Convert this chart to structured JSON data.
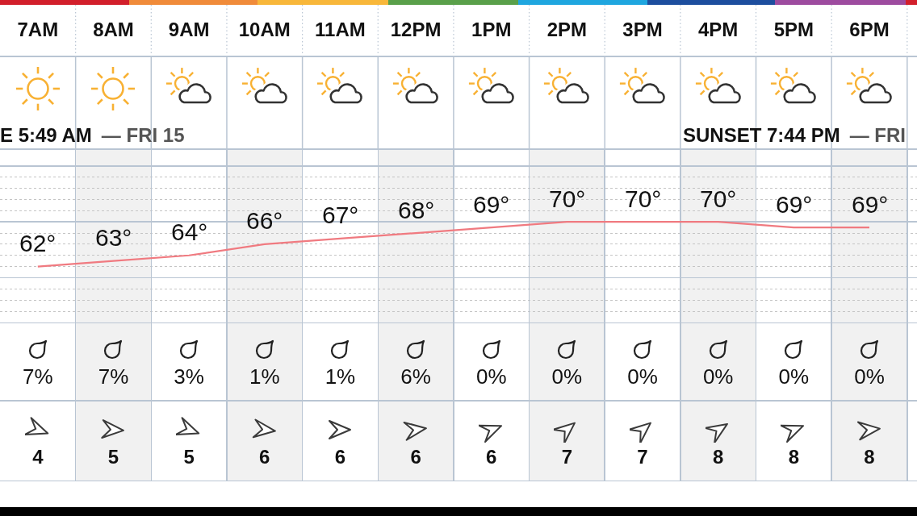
{
  "chart_data": [
    {
      "type": "line",
      "categories": [
        "7AM",
        "8AM",
        "9AM",
        "10AM",
        "11AM",
        "12PM",
        "1PM",
        "2PM",
        "3PM",
        "4PM",
        "5PM",
        "6PM"
      ],
      "values": [
        62,
        63,
        64,
        66,
        67,
        68,
        69,
        70,
        70,
        70,
        69,
        69
      ],
      "value_labels": [
        "62°",
        "63°",
        "64°",
        "66°",
        "67°",
        "68°",
        "69°",
        "70°",
        "70°",
        "70°",
        "69°",
        "69°"
      ],
      "color": "#f07a80",
      "ylim": [
        52,
        83
      ],
      "yticks": [
        {
          "value": 60,
          "label": null
        },
        {
          "value": 70,
          "label": null
        },
        {
          "value": 80,
          "label": null
        }
      ],
      "grid": true,
      "tick_labels": "x",
      "annotations": [
        "E 5:49 AM",
        "— FRI 15",
        "SUNSET 7:44 PM",
        "— FRI"
      ]
    },
    {
      "type": "other",
      "values": [
        7,
        7,
        3,
        1,
        1,
        6,
        0,
        0,
        0,
        0,
        0,
        0
      ],
      "value_labels": [
        "7%",
        "7%",
        "3%",
        "1%",
        "1%",
        "6%",
        "0%",
        "0%",
        "0%",
        "0%",
        "0%",
        "0%"
      ]
    },
    {
      "type": "other",
      "values": [
        4,
        5,
        5,
        6,
        6,
        6,
        6,
        7,
        7,
        8,
        8,
        8
      ],
      "data_labels": true
    }
  ]
}
